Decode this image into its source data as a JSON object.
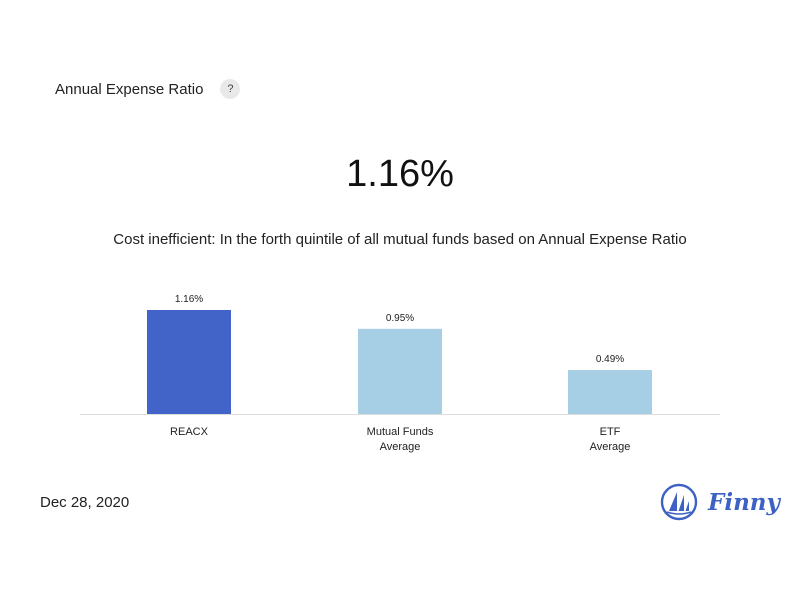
{
  "header": {
    "title": "Annual Expense Ratio",
    "help_label": "?"
  },
  "headline_value": "1.16%",
  "subtitle": "Cost inefficient: In the forth quintile of all mutual funds based on Annual Expense Ratio",
  "date": "Dec 28, 2020",
  "brand": {
    "name": "Finny",
    "logo_icon": "sailboat-logo-icon",
    "color": "#3d62c4"
  },
  "chart_data": {
    "type": "bar",
    "categories": [
      [
        "REACX"
      ],
      [
        "Mutual Funds",
        "Average"
      ],
      [
        "ETF",
        "Average"
      ]
    ],
    "values": [
      1.16,
      0.95,
      0.49
    ],
    "value_labels": [
      "1.16%",
      "0.95%",
      "0.49%"
    ],
    "colors": [
      "#4263c8",
      "#a6cfe6",
      "#a6cfe6"
    ],
    "ylim": [
      0,
      1.16
    ],
    "grid": false,
    "title": "",
    "xlabel": "",
    "ylabel": ""
  }
}
